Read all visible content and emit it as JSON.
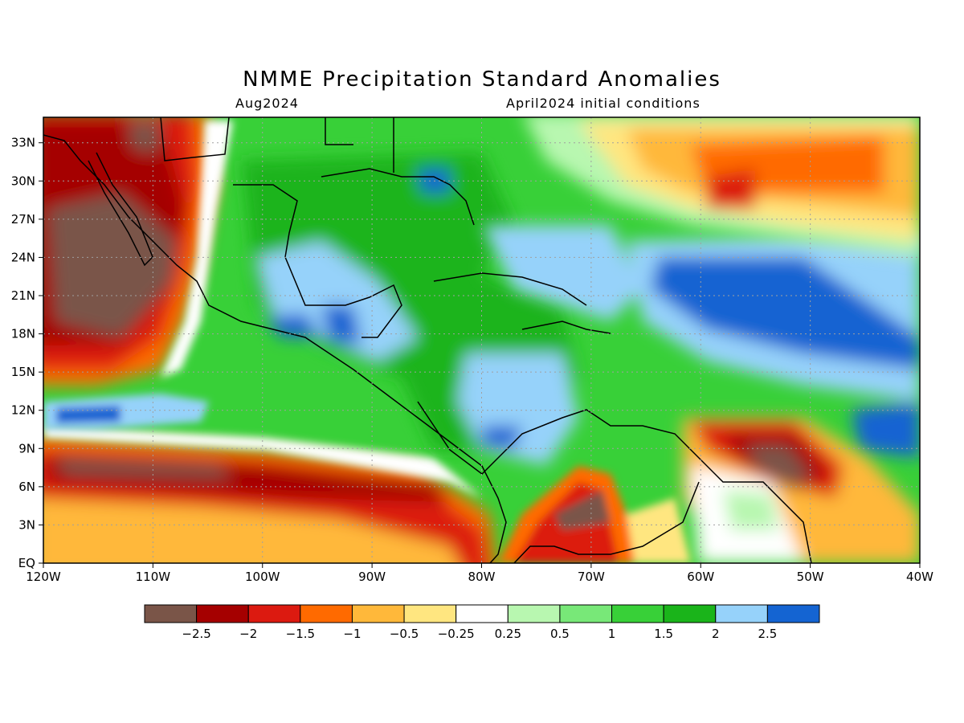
{
  "title": "NMME Precipitation Standard Anomalies",
  "subtitle_left": "Aug2024",
  "subtitle_right": "April2024 initial conditions",
  "map": {
    "lon_range": [
      -120,
      -40
    ],
    "lat_range": [
      0,
      35
    ],
    "x_ticks": [
      {
        "value": -120,
        "label": "120W"
      },
      {
        "value": -110,
        "label": "110W"
      },
      {
        "value": -100,
        "label": "100W"
      },
      {
        "value": -90,
        "label": "90W"
      },
      {
        "value": -80,
        "label": "80W"
      },
      {
        "value": -70,
        "label": "70W"
      },
      {
        "value": -60,
        "label": "60W"
      },
      {
        "value": -50,
        "label": "50W"
      },
      {
        "value": -40,
        "label": "40W"
      }
    ],
    "y_ticks": [
      {
        "value": 0,
        "label": "EQ"
      },
      {
        "value": 3,
        "label": "3N"
      },
      {
        "value": 6,
        "label": "6N"
      },
      {
        "value": 9,
        "label": "9N"
      },
      {
        "value": 12,
        "label": "12N"
      },
      {
        "value": 15,
        "label": "15N"
      },
      {
        "value": 18,
        "label": "18N"
      },
      {
        "value": 21,
        "label": "21N"
      },
      {
        "value": 24,
        "label": "24N"
      },
      {
        "value": 27,
        "label": "27N"
      },
      {
        "value": 30,
        "label": "30N"
      },
      {
        "value": 33,
        "label": "33N"
      }
    ],
    "grid": true
  },
  "colorbar": {
    "colors": [
      "#7a5548",
      "#a50000",
      "#dc1a10",
      "#ff6a00",
      "#ffb83a",
      "#ffe680",
      "#ffffff",
      "#b8f7b0",
      "#78e878",
      "#38d038",
      "#1ab41a",
      "#96d2fa",
      "#1464d2"
    ],
    "labels": [
      "−2.5",
      "−2",
      "−1.5",
      "−1",
      "−0.5",
      "−0.25",
      "0.25",
      "0.5",
      "1",
      "1.5",
      "2",
      "2.5"
    ]
  },
  "regions": [
    {
      "name": "mexico-pacific-dry",
      "level": 0,
      "lon_min": -120,
      "lon_max": -106,
      "lat_min": 17,
      "lat_max": 35
    },
    {
      "name": "itcz-south-dry",
      "level": 1,
      "lon_min": -120,
      "lon_max": -80,
      "lat_min": 4,
      "lat_max": 9
    },
    {
      "name": "colombia-dry",
      "level": 0,
      "lon_min": -75,
      "lon_max": -70,
      "lat_min": 3,
      "lat_max": 6
    },
    {
      "name": "guianas-dry",
      "level": 0,
      "lon_min": -56,
      "lon_max": -50,
      "lat_min": 6,
      "lat_max": 9
    },
    {
      "name": "atlantic-wet",
      "level": 12,
      "lon_min": -65,
      "lon_max": -40,
      "lat_min": 15,
      "lat_max": 24
    },
    {
      "name": "gulf-caribbean-wet",
      "level": 10,
      "lon_min": -104,
      "lon_max": -60,
      "lat_min": 9,
      "lat_max": 30
    }
  ]
}
